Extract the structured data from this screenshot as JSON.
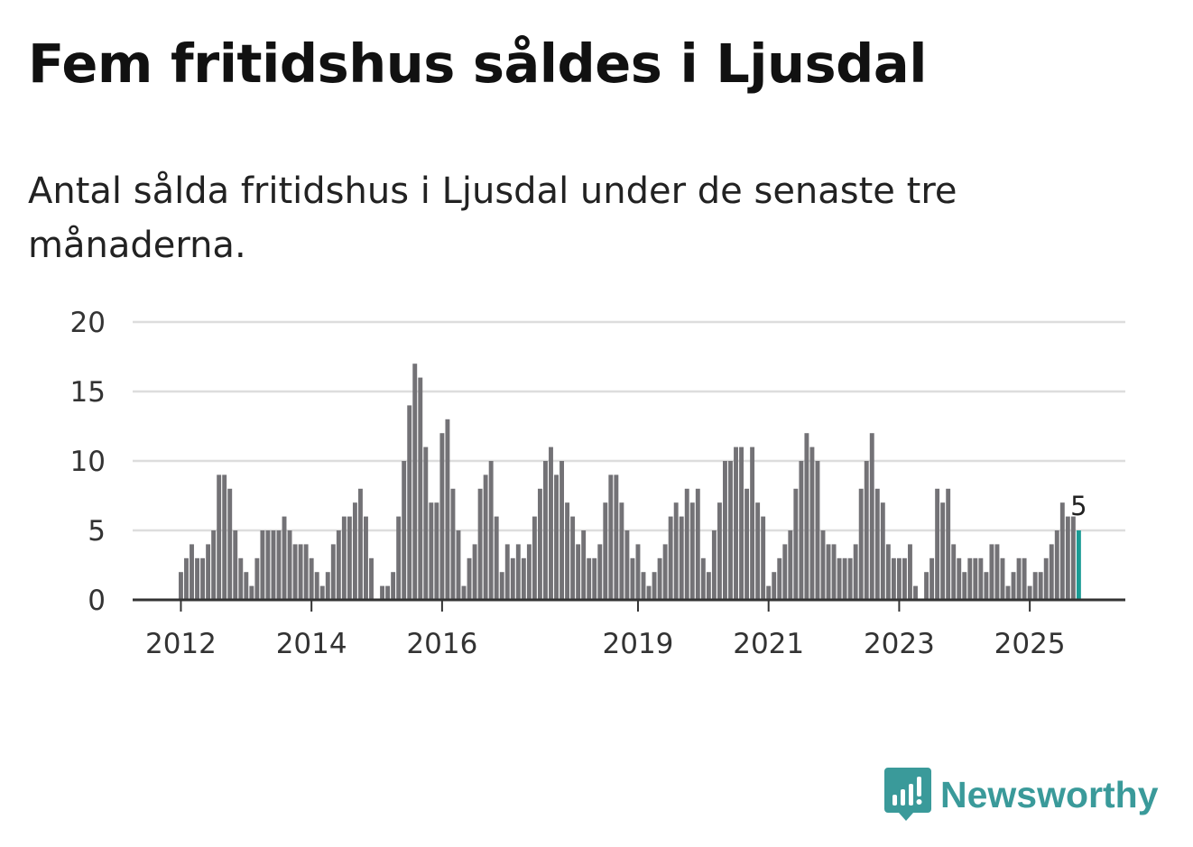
{
  "title": "Fem fritidshus såldes i Ljusdal",
  "subtitle": "Antal sålda fritidshus i Ljusdal under de senaste tre månaderna.",
  "brand": {
    "name": "Newsworthy",
    "icon": "newsworthy-logo-icon",
    "color": "#3a9a9a"
  },
  "colors": {
    "bar": "#737276",
    "highlight": "#1a9c95",
    "grid": "#dddddd",
    "axis": "#333333",
    "text": "#333333"
  },
  "chart_data": {
    "type": "bar",
    "title": "Fem fritidshus såldes i Ljusdal",
    "subtitle": "Antal sålda fritidshus i Ljusdal under de senaste tre månaderna.",
    "xlabel": "",
    "ylabel": "",
    "ylim": [
      0,
      20
    ],
    "yticks": [
      0,
      5,
      10,
      15,
      20
    ],
    "grid": true,
    "legend": "none",
    "x_tick_labels": [
      {
        "label": "2012",
        "index": 0
      },
      {
        "label": "2014",
        "index": 24
      },
      {
        "label": "2016",
        "index": 48
      },
      {
        "label": "2019",
        "index": 84
      },
      {
        "label": "2021",
        "index": 108
      },
      {
        "label": "2023",
        "index": 132
      },
      {
        "label": "2025",
        "index": 156
      }
    ],
    "series": [
      {
        "name": "Antal sålda fritidshus",
        "values": [
          2,
          3,
          4,
          3,
          3,
          4,
          5,
          9,
          9,
          8,
          5,
          3,
          2,
          1,
          3,
          5,
          5,
          5,
          5,
          6,
          5,
          4,
          4,
          4,
          3,
          2,
          1,
          2,
          4,
          5,
          6,
          6,
          7,
          8,
          6,
          3,
          0,
          1,
          1,
          2,
          6,
          10,
          14,
          17,
          16,
          11,
          7,
          7,
          12,
          13,
          8,
          5,
          1,
          3,
          4,
          8,
          9,
          10,
          6,
          2,
          4,
          3,
          4,
          3,
          4,
          6,
          8,
          10,
          11,
          9,
          10,
          7,
          6,
          4,
          5,
          3,
          3,
          4,
          7,
          9,
          9,
          7,
          5,
          3,
          4,
          2,
          1,
          2,
          3,
          4,
          6,
          7,
          6,
          8,
          7,
          8,
          3,
          2,
          5,
          7,
          10,
          10,
          11,
          11,
          8,
          11,
          7,
          6,
          1,
          2,
          3,
          4,
          5,
          8,
          10,
          12,
          11,
          10,
          5,
          4,
          4,
          3,
          3,
          3,
          4,
          8,
          10,
          12,
          8,
          7,
          4,
          3,
          3,
          3,
          4,
          1,
          0,
          2,
          3,
          8,
          7,
          8,
          4,
          3,
          2,
          3,
          3,
          3,
          2,
          4,
          4,
          3,
          1,
          2,
          3,
          3,
          1,
          2,
          2,
          3,
          4,
          5,
          7,
          6,
          6,
          5
        ],
        "highlight_last": true,
        "last_value_label": "5"
      }
    ]
  }
}
